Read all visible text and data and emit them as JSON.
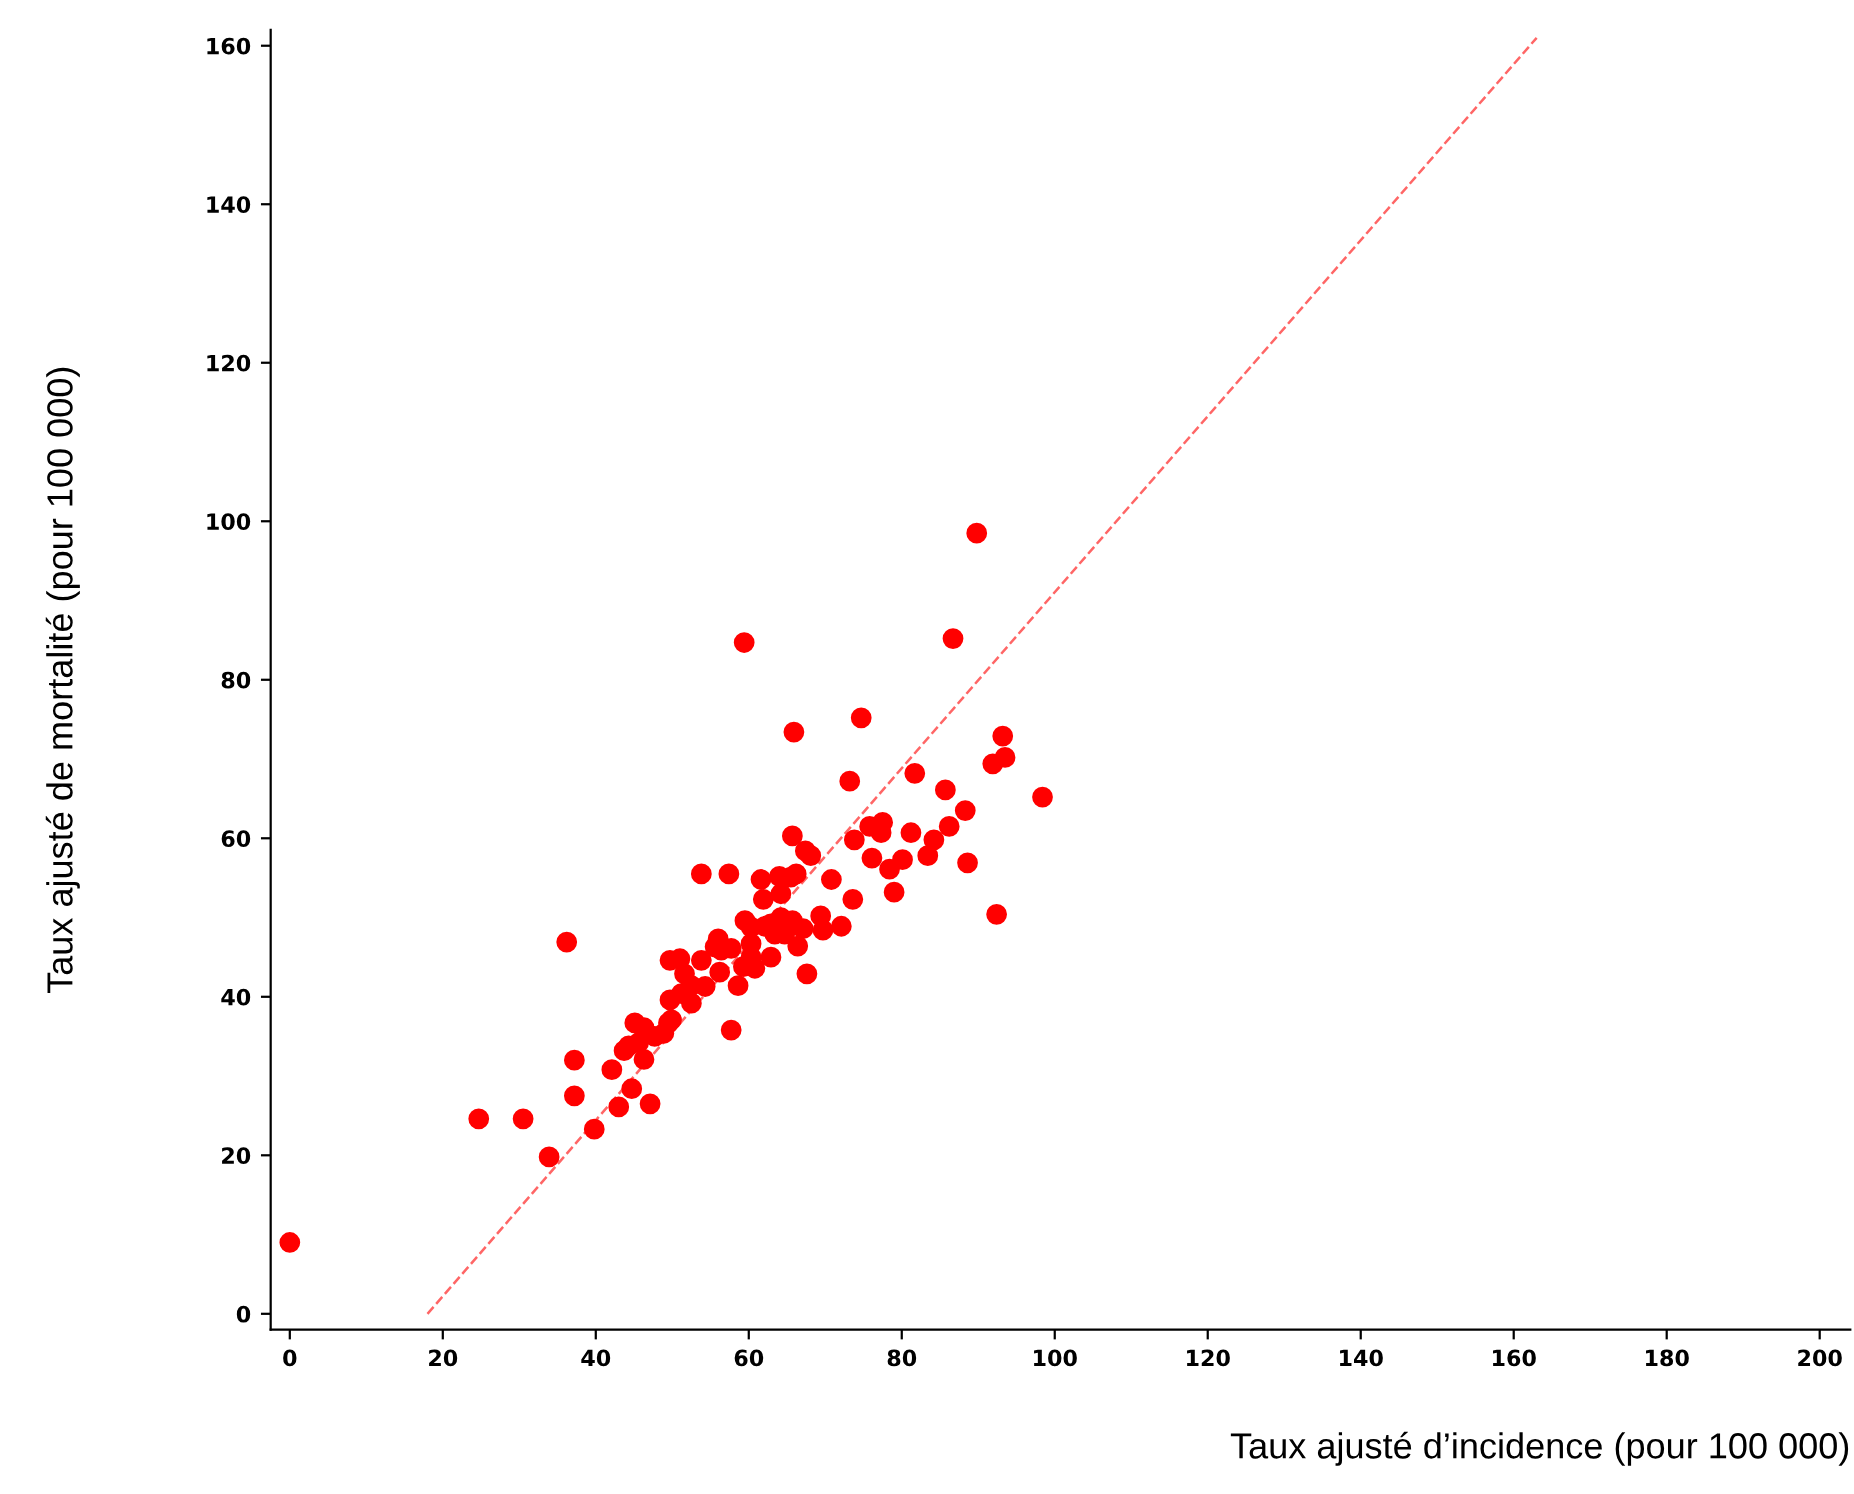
{
  "chart_data": {
    "type": "scatter",
    "xlabel": "Taux ajusté d’incidence (pour 100 000)",
    "ylabel": "Taux ajusté de mortalité (pour 100 000)",
    "xlim": [
      -2.5,
      204
    ],
    "ylim": [
      -2,
      162
    ],
    "xticks": [
      0,
      20,
      40,
      60,
      80,
      100,
      120,
      140,
      160,
      180,
      200
    ],
    "yticks": [
      0,
      20,
      40,
      60,
      80,
      100,
      120,
      140,
      160
    ],
    "grid": false,
    "legend": false,
    "series": [
      {
        "color": "#ff0000",
        "marker": "circle",
        "x": [
          0,
          89.8,
          86.7,
          59.4,
          65.9,
          74.7,
          93.2,
          93.5,
          91.9,
          98.4,
          92.4,
          36.2,
          24.7,
          30.5,
          33.9,
          39.8,
          37.2,
          37.2,
          42.1,
          43,
          44.7,
          47.1,
          43.7,
          45.1,
          46.3,
          46.3,
          47.7,
          48.9,
          49.9,
          49.7,
          49.7,
          51,
          51.6,
          52.5,
          53.8,
          54.3,
          53.8,
          57.4,
          56,
          56.4,
          56.2,
          57.7,
          58.6,
          59.5,
          60.3,
          60.3,
          61.9,
          61.6,
          62.9,
          62.1,
          63.4,
          64.2,
          64.2,
          64,
          65.5,
          66.2,
          64.7,
          65.7,
          66.4,
          67.1,
          67.6,
          65.7,
          67.4,
          68.1,
          69.4,
          69.7,
          70.8,
          72.1,
          73.6,
          73.2,
          73.8,
          75.8,
          76.1,
          77.5,
          77.3,
          78.4,
          79,
          80.1,
          81.2,
          81.7,
          83.4,
          84.2,
          85.7,
          86.2,
          88.3,
          88.6,
          55.6,
          57.7,
          59.3,
          60.3,
          60.8,
          62.9,
          52.5,
          51.2,
          49.5,
          45.6,
          44.3
        ],
        "values": [
          9,
          98.5,
          85.2,
          84.7,
          73.4,
          75.2,
          72.9,
          70.2,
          69.4,
          65.2,
          50.4,
          46.9,
          24.6,
          24.6,
          19.8,
          23.3,
          32.0,
          27.5,
          30.8,
          26.1,
          28.4,
          26.5,
          33.2,
          36.7,
          36.1,
          32.1,
          35.0,
          35.4,
          37.1,
          39.6,
          44.6,
          44.8,
          42.9,
          39.2,
          44.6,
          41.3,
          55.5,
          55.5,
          47.3,
          45.9,
          43.1,
          35.8,
          41.4,
          49.6,
          48.8,
          46.7,
          52.3,
          54.8,
          45.0,
          48.9,
          47.9,
          50.0,
          53.0,
          55.2,
          55.1,
          55.5,
          47.9,
          49.6,
          46.4,
          48.6,
          42.9,
          60.3,
          58.4,
          57.8,
          50.2,
          48.4,
          54.8,
          48.9,
          52.3,
          67.2,
          59.8,
          61.5,
          57.5,
          62.0,
          60.7,
          56.1,
          53.2,
          57.3,
          60.7,
          68.2,
          57.8,
          59.8,
          66.1,
          61.5,
          63.5,
          56.9,
          46.3,
          46.1,
          43.8,
          45,
          43.6,
          49.2,
          41.4,
          40.4,
          36.7,
          34.2,
          33.8
        ]
      },
      {
        "type": "line",
        "color": "#ff6666",
        "line_style": "dashed",
        "marker": "none",
        "x": [
          18,
          163
        ],
        "values": [
          0,
          161
        ]
      }
    ]
  }
}
